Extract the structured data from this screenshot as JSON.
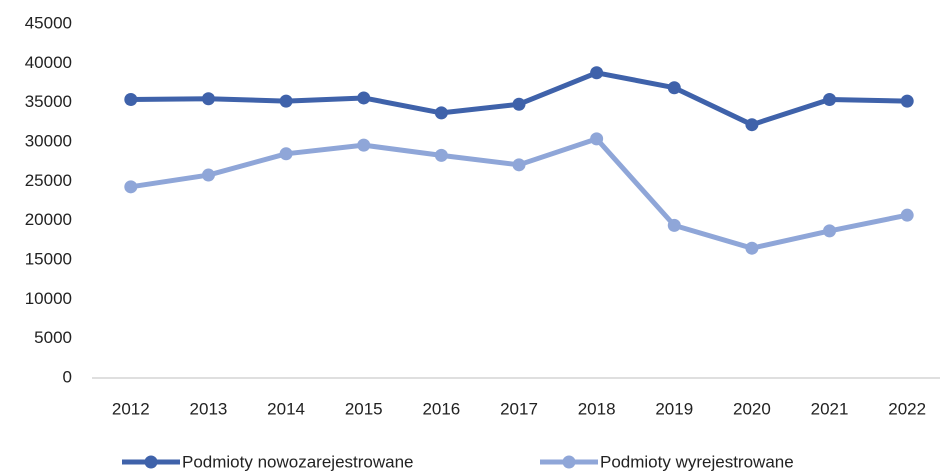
{
  "chart_data": {
    "type": "line",
    "categories": [
      "2012",
      "2013",
      "2014",
      "2015",
      "2016",
      "2017",
      "2018",
      "2019",
      "2020",
      "2021",
      "2022"
    ],
    "series": [
      {
        "name": "Podmioty nowozarejestrowane",
        "color": "#3f62aa",
        "values": [
          35400,
          35500,
          35200,
          35600,
          33700,
          34800,
          38800,
          36900,
          32200,
          35400,
          35200
        ]
      },
      {
        "name": "Podmioty wyrejestrowane",
        "color": "#8fa6d8",
        "values": [
          24300,
          25800,
          28500,
          29600,
          28300,
          27100,
          30400,
          19400,
          16500,
          18700,
          20700
        ]
      }
    ],
    "ylim": [
      0,
      45000
    ],
    "yticks": [
      0,
      5000,
      10000,
      15000,
      20000,
      25000,
      30000,
      35000,
      40000,
      45000
    ],
    "grid": false,
    "legend": "bottom"
  }
}
